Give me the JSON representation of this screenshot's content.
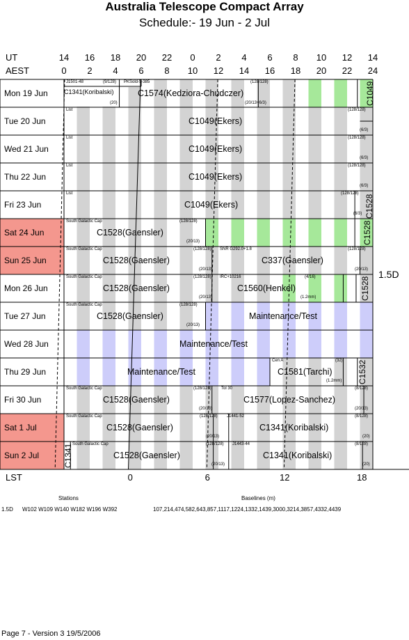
{
  "title": "Australia Telescope Compact Array",
  "subtitle": "Schedule:- 19 Jun - 2  Jul",
  "axes": {
    "ut_label": "UT",
    "aest_label": "AEST",
    "lst_label": "LST",
    "ut_ticks": [
      "14",
      "16",
      "18",
      "20",
      "22",
      "0",
      "2",
      "4",
      "6",
      "8",
      "10",
      "12",
      "14"
    ],
    "aest_ticks": [
      "0",
      "2",
      "4",
      "6",
      "8",
      "10",
      "12",
      "14",
      "16",
      "18",
      "20",
      "22",
      "24"
    ],
    "lst_ticks": [
      "0",
      "6",
      "12",
      "18"
    ]
  },
  "colors": {
    "weekend": "#f4978e",
    "grey_band": "#d3d3d3",
    "green_band": "#a6e89a",
    "maintenance_band": "#cdcdfa"
  },
  "days": [
    {
      "label": "Mon   19 Jun",
      "weekend": false
    },
    {
      "label": "Tue   20 Jun",
      "weekend": false
    },
    {
      "label": "Wed   21 Jun",
      "weekend": false
    },
    {
      "label": "Thu   22 Jun",
      "weekend": false
    },
    {
      "label": "Fri    23 Jun",
      "weekend": false
    },
    {
      "label": "Sat   24 Jun",
      "weekend": true
    },
    {
      "label": "Sun   25 Jun",
      "weekend": true
    },
    {
      "label": "Mon   26 Jun",
      "weekend": false
    },
    {
      "label": "Tue   27 Jun",
      "weekend": false
    },
    {
      "label": "Wed   28 Jun",
      "weekend": false
    },
    {
      "label": "Thu   29 Jun",
      "weekend": false
    },
    {
      "label": "Fri    30 Jun",
      "weekend": false
    },
    {
      "label": "Sat     1  Jul",
      "weekend": true
    },
    {
      "label": "Sun    2  Jul",
      "weekend": true
    }
  ],
  "projects": {
    "r0_a": "C1341(Koribalski)",
    "r0_b": "C1574(Kedziora-Chudczer)",
    "r0_v": "C1049",
    "r1": "C1049(Ekers)",
    "r2": "C1049(Ekers)",
    "r3": "C1049(Ekers)",
    "r4": "C1049(Ekers)",
    "r4_v": "C1528",
    "r5": "C1528(Gaensler)",
    "r5_v": "C1528",
    "r6_a": "C1528(Gaensler)",
    "r6_b": "C337(Gaensler)",
    "r7_a": "C1528(Gaensler)",
    "r7_b": "C1560(Henkel)",
    "r7_v": "C1528",
    "r8_a": "C1528(Gaensler)",
    "r8_b": "Maintenance/Test",
    "r9": "Maintenance/Test",
    "r10_a": "Maintenance/Test",
    "r10_b": "C1581(Tarchi)",
    "r10_v": "C1532",
    "r11_a": "C1528(Gaensler)",
    "r11_b": "C1577(Lopez-Sanchez)",
    "r12_a": "C1528(Gaensler)",
    "r12_b": "C1341(Koribalski)",
    "r13_a": "C1528(Gaensler)",
    "r13_b": "C1341(Koribalski)",
    "r13_v": "C1341"
  },
  "small_labels": {
    "r0_1": "J1501-48",
    "r0_2": "(9/128)",
    "r0_3": "PKSold-5-385",
    "r0_4": "(128/128)",
    "r0_5": "(20)",
    "r0_6": "(20/13+6/3)",
    "list": "List",
    "bw128": "(128/128)",
    "bw63": "(6/3)",
    "sgc": "South Galactic Cap",
    "sgc2": "South Galactic Cap",
    "bw2013": "(20/13)",
    "snr": "SNR G292.0+1.8",
    "irc": "IRC+10216",
    "bw416": "(4/16)",
    "bw12mm": "(1.2mm)",
    "cena": "Cen A",
    "bw32": "(32)",
    "tol30": "Tol 30",
    "j1441": "J1441-52",
    "j1443": "J1443-44",
    "bw8128": "(8/128)",
    "bw20": "(20)"
  },
  "config": "1.5D",
  "footer": {
    "stations_label": "Stations",
    "baselines_label": "Baselines (m)",
    "config": "1.5D",
    "stations": "W102 W109 W140 W182 W196 W392",
    "baselines": "107,214,474,582,643,857,1117,1224,1332,1439,3000,3214,3857,4332,4439",
    "page": "Page 7 - Version 3  19/5/2006"
  }
}
